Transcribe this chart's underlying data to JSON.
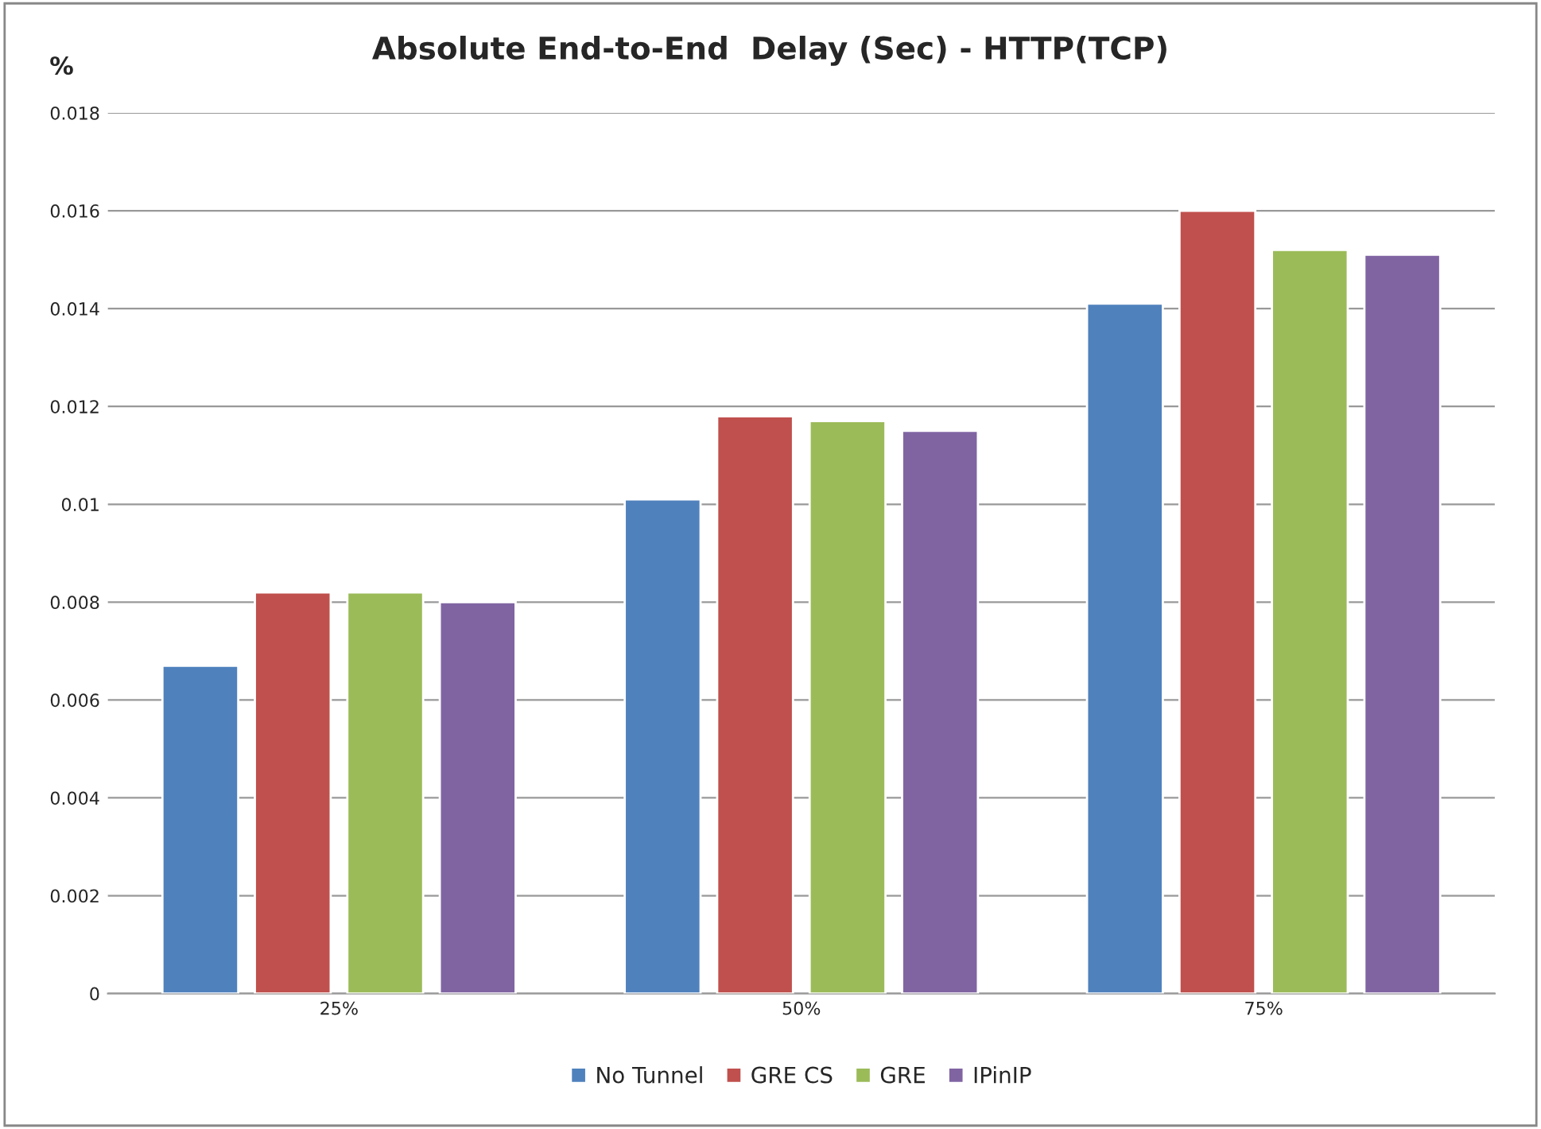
{
  "chart_data": {
    "type": "bar",
    "title": "Absolute End-to-End  Delay (Sec) - HTTP(TCP)",
    "ylabel": "%",
    "categories": [
      "25%",
      "50%",
      "75%"
    ],
    "series": [
      {
        "name": "No Tunnel",
        "color": "#4f81bd",
        "values": [
          0.0067,
          0.0101,
          0.0141
        ]
      },
      {
        "name": "GRE CS",
        "color": "#c0504d",
        "values": [
          0.0082,
          0.0118,
          0.016
        ]
      },
      {
        "name": "GRE",
        "color": "#9bbb59",
        "values": [
          0.0082,
          0.0117,
          0.0152
        ]
      },
      {
        "name": "IPinIP",
        "color": "#8064a2",
        "values": [
          0.008,
          0.0115,
          0.0151
        ]
      }
    ],
    "ylim": [
      0,
      0.018
    ],
    "yticks": [
      0,
      0.002,
      0.004,
      0.006,
      0.008,
      0.01,
      0.012,
      0.014,
      0.016,
      0.018
    ],
    "grid": "y",
    "legend": "bottom"
  }
}
